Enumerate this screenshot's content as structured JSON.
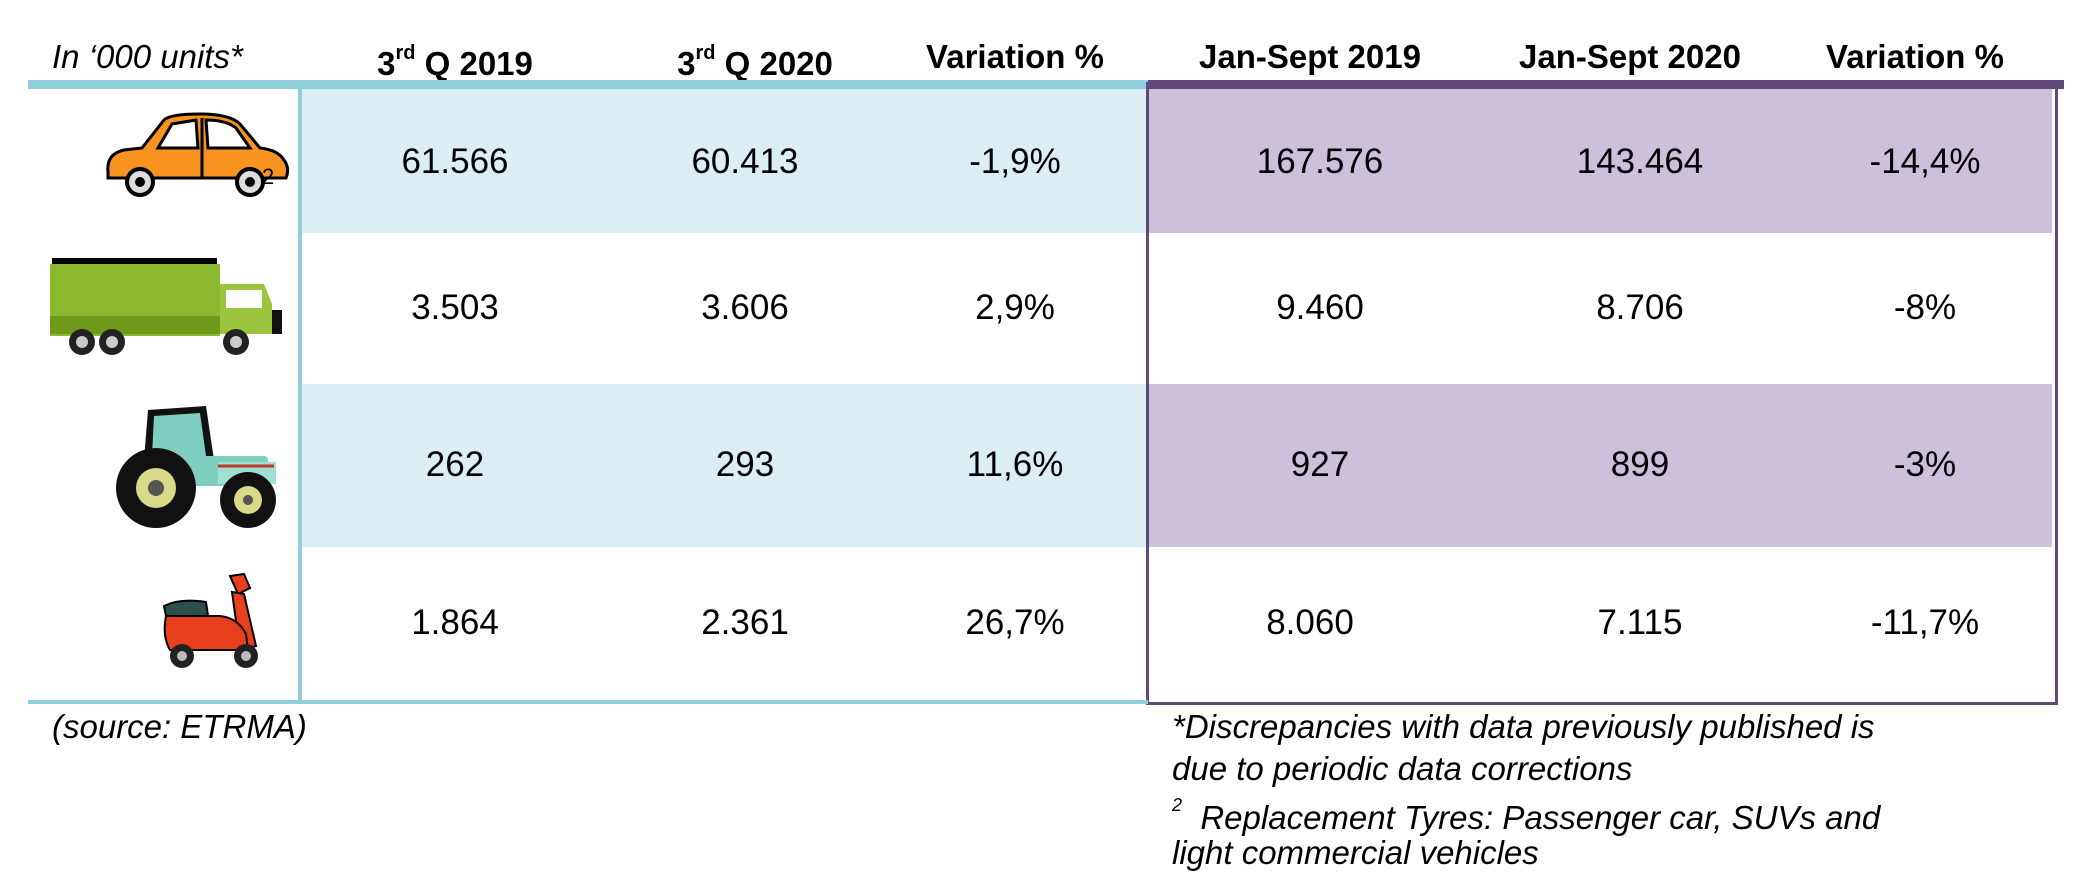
{
  "header": {
    "units_label": "In ‘000 units*",
    "q3_2019": {
      "prefix": "3",
      "sup": "rd",
      "suffix": " Q 2019"
    },
    "q3_2020": {
      "prefix": "3",
      "sup": "rd",
      "suffix": " Q 2020"
    },
    "variation_q": "Variation %",
    "jan_sept_2019": "Jan-Sept 2019",
    "jan_sept_2020": "Jan-Sept 2020",
    "variation_ytd": "Variation %"
  },
  "rows": [
    {
      "icon": "car-icon",
      "footnote_mark": "2",
      "q3_2019": "61.566",
      "q3_2020": "60.413",
      "var_q": "-1,9%",
      "ytd_2019": "167.576",
      "ytd_2020": "143.464",
      "var_ytd": "-14,4%"
    },
    {
      "icon": "truck-icon",
      "q3_2019": "3.503",
      "q3_2020": "3.606",
      "var_q": "2,9%",
      "ytd_2019": "9.460",
      "ytd_2020": "8.706",
      "var_ytd": "-8%"
    },
    {
      "icon": "tractor-icon",
      "q3_2019": "262",
      "q3_2020": "293",
      "var_q": "11,6%",
      "ytd_2019": "927",
      "ytd_2020": "899",
      "var_ytd": "-3%"
    },
    {
      "icon": "scooter-icon",
      "q3_2019": "1.864",
      "q3_2020": "2.361",
      "var_q": "26,7%",
      "ytd_2019": "8.060",
      "ytd_2020": "7.115",
      "var_ytd": "-11,7%"
    }
  ],
  "source": "(source: ETRMA)",
  "notes": {
    "discrepancy_line1": "*Discrepancies with data previously published is",
    "discrepancy_line2": "due to periodic data corrections",
    "replacement_mark": "2",
    "replacement_line1": "  Replacement Tyres: Passenger car, SUVs and",
    "replacement_line2": "light commercial vehicles"
  },
  "colors": {
    "blue_rule": "#92cddc",
    "blue_band": "#dbeef4",
    "purple_rule": "#5f497a",
    "purple_band": "#ccc0da"
  }
}
